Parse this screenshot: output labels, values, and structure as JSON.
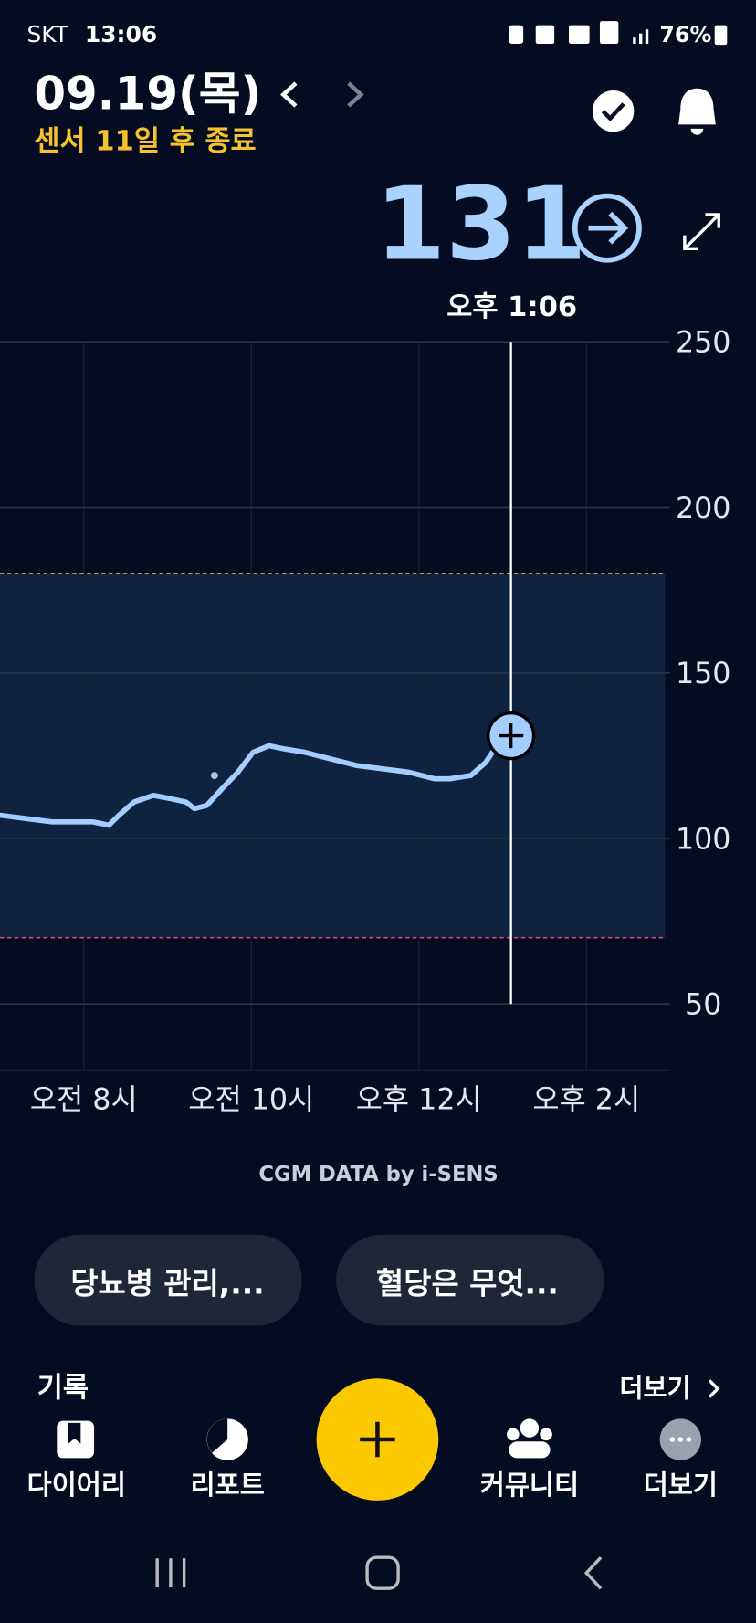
{
  "status_bar": {
    "carrier": "SKT",
    "time": "13:06",
    "battery": "76%"
  },
  "header": {
    "date": "09.19(목)",
    "sensor_notice": "센서 11일 후 종료"
  },
  "chart_data": {
    "type": "line",
    "current_value": 131,
    "current_time": "오후 1:06",
    "cursor_x": 13.1,
    "x": [
      7.0,
      7.31,
      7.62,
      8.11,
      8.3,
      8.42,
      8.6,
      8.83,
      9.04,
      9.22,
      9.32,
      9.47,
      9.65,
      9.84,
      10.02,
      10.21,
      10.4,
      10.64,
      10.95,
      11.26,
      11.57,
      11.88,
      12.19,
      12.37,
      12.62,
      12.8,
      12.93,
      13.1
    ],
    "series": [
      {
        "color": "#a3cdff",
        "values": [
          107,
          106,
          105,
          105,
          104,
          107,
          111,
          113,
          112,
          111,
          109,
          110,
          115,
          120,
          126,
          128,
          127,
          126,
          124,
          122,
          121,
          120,
          118,
          118,
          119,
          123,
          128,
          131
        ]
      }
    ],
    "extra_points": {
      "x": [
        9.56
      ],
      "values": [
        119
      ]
    },
    "xlim": [
      7,
      15
    ],
    "ylim": [
      30,
      250
    ],
    "xticks": [
      {
        "value": 8,
        "label": "오전 8시"
      },
      {
        "value": 10,
        "label": "오전 10시"
      },
      {
        "value": 12,
        "label": "오후 12시"
      },
      {
        "value": 14,
        "label": "오후 2시"
      }
    ],
    "yticks": [
      50,
      100,
      150,
      200,
      250
    ],
    "target_range": [
      70,
      180
    ],
    "target_colors": [
      "#d9456a",
      "#e3a33a"
    ],
    "grid": true,
    "footer": "CGM DATA by i-SENS"
  },
  "cards": [
    "당뇨병 관리,...",
    "혈당은 무엇..."
  ],
  "section": {
    "title": "기록",
    "more": "더보기"
  },
  "nav": [
    "다이어리",
    "리포트",
    "커뮤니티",
    "더보기"
  ]
}
